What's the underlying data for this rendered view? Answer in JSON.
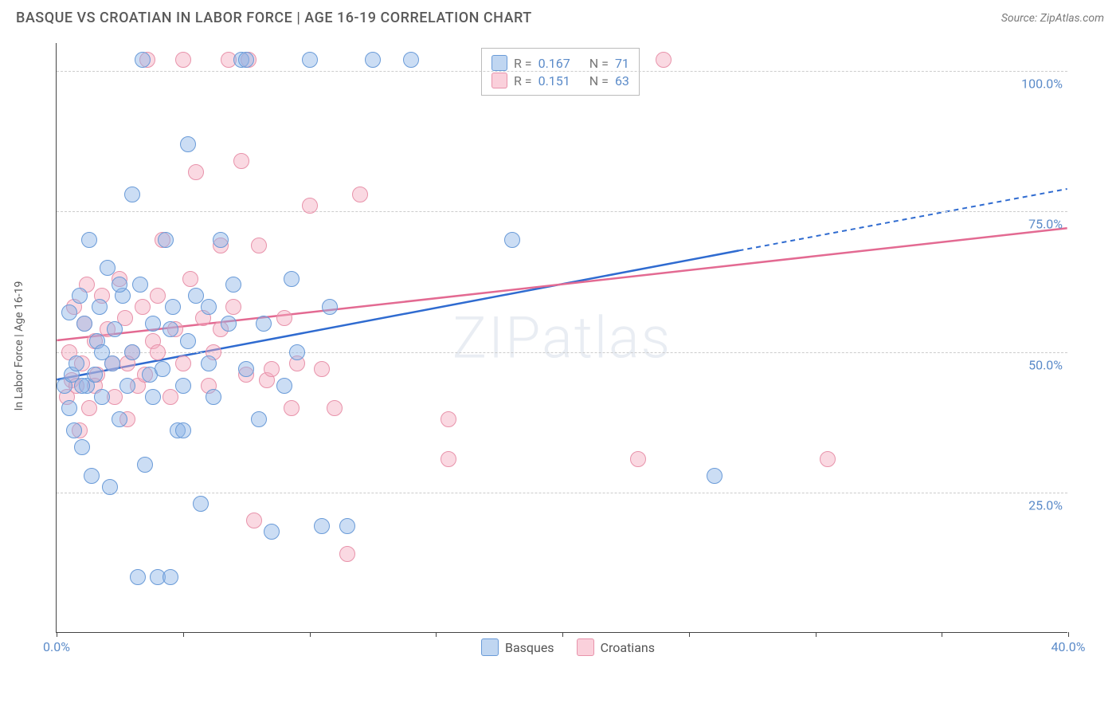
{
  "header": {
    "title": "BASQUE VS CROATIAN IN LABOR FORCE | AGE 16-19 CORRELATION CHART",
    "source": "Source: ZipAtlas.com"
  },
  "chart": {
    "type": "scatter",
    "ylabel": "In Labor Force | Age 16-19",
    "watermark": "ZIPatlas",
    "xlim": [
      0,
      40
    ],
    "ylim": [
      0,
      105
    ],
    "x_ticks": [
      0,
      5,
      10,
      15,
      20,
      25,
      30,
      35,
      40
    ],
    "x_tick_labels": {
      "0": "0.0%",
      "40": "40.0%"
    },
    "y_gridlines": [
      25,
      50,
      75,
      100
    ],
    "y_tick_labels": {
      "25": "25.0%",
      "50": "50.0%",
      "75": "75.0%",
      "100": "100.0%"
    },
    "background_color": "#ffffff",
    "grid_color": "#cccccc",
    "axis_label_color": "#5b8bc9",
    "axis_text_color": "#5a5a5a",
    "series": {
      "basque": {
        "label": "Basques",
        "fill": "rgba(140,180,230,0.45)",
        "stroke": "#6a9bd8",
        "trend_color": "#2f6bd0",
        "R": "0.167",
        "N": "71",
        "trend": {
          "x1": 0,
          "y1": 45,
          "x2_solid": 27,
          "y2_solid": 68,
          "x2_dash": 40,
          "y2_dash": 79
        },
        "points": [
          [
            0.3,
            44
          ],
          [
            0.5,
            40
          ],
          [
            0.5,
            57
          ],
          [
            0.6,
            46
          ],
          [
            0.7,
            36
          ],
          [
            0.8,
            48
          ],
          [
            0.9,
            60
          ],
          [
            1.0,
            33
          ],
          [
            1.1,
            55
          ],
          [
            1.2,
            44
          ],
          [
            1.3,
            70
          ],
          [
            1.4,
            28
          ],
          [
            1.5,
            46
          ],
          [
            1.6,
            52
          ],
          [
            1.7,
            58
          ],
          [
            1.8,
            42
          ],
          [
            2.0,
            65
          ],
          [
            2.1,
            26
          ],
          [
            2.2,
            48
          ],
          [
            2.3,
            54
          ],
          [
            2.5,
            38
          ],
          [
            2.6,
            60
          ],
          [
            2.8,
            44
          ],
          [
            3.0,
            50
          ],
          [
            3.0,
            78
          ],
          [
            3.2,
            10
          ],
          [
            3.3,
            62
          ],
          [
            3.4,
            102
          ],
          [
            3.5,
            30
          ],
          [
            3.7,
            46
          ],
          [
            3.8,
            55
          ],
          [
            4.0,
            10
          ],
          [
            4.2,
            47
          ],
          [
            4.3,
            70
          ],
          [
            4.5,
            10
          ],
          [
            4.6,
            58
          ],
          [
            4.8,
            36
          ],
          [
            5.0,
            44
          ],
          [
            5.2,
            52
          ],
          [
            5.2,
            87
          ],
          [
            5.5,
            60
          ],
          [
            5.7,
            23
          ],
          [
            6.0,
            48
          ],
          [
            6.2,
            42
          ],
          [
            6.5,
            70
          ],
          [
            6.8,
            55
          ],
          [
            7.0,
            62
          ],
          [
            7.3,
            102
          ],
          [
            7.5,
            102
          ],
          [
            7.5,
            47
          ],
          [
            8.0,
            38
          ],
          [
            8.2,
            55
          ],
          [
            8.5,
            18
          ],
          [
            9.0,
            44
          ],
          [
            9.3,
            63
          ],
          [
            9.5,
            50
          ],
          [
            10.0,
            102
          ],
          [
            10.5,
            19
          ],
          [
            10.8,
            58
          ],
          [
            11.5,
            19
          ],
          [
            12.5,
            102
          ],
          [
            14.0,
            102
          ],
          [
            18.0,
            70
          ],
          [
            26.0,
            28
          ],
          [
            1.0,
            44
          ],
          [
            1.8,
            50
          ],
          [
            2.5,
            62
          ],
          [
            3.8,
            42
          ],
          [
            4.5,
            54
          ],
          [
            5.0,
            36
          ],
          [
            6.0,
            58
          ]
        ]
      },
      "croatian": {
        "label": "Croatians",
        "fill": "rgba(245,170,190,0.45)",
        "stroke": "#e893ab",
        "trend_color": "#e36a92",
        "R": "0.151",
        "N": "63",
        "trend": {
          "x1": 0,
          "y1": 52,
          "x2_solid": 40,
          "y2_solid": 72,
          "x2_dash": 40,
          "y2_dash": 72
        },
        "points": [
          [
            0.4,
            42
          ],
          [
            0.5,
            50
          ],
          [
            0.6,
            45
          ],
          [
            0.7,
            58
          ],
          [
            0.8,
            44
          ],
          [
            0.9,
            36
          ],
          [
            1.0,
            48
          ],
          [
            1.1,
            55
          ],
          [
            1.2,
            62
          ],
          [
            1.3,
            40
          ],
          [
            1.5,
            52
          ],
          [
            1.6,
            46
          ],
          [
            1.8,
            60
          ],
          [
            2.0,
            54
          ],
          [
            2.2,
            48
          ],
          [
            2.3,
            42
          ],
          [
            2.5,
            63
          ],
          [
            2.7,
            56
          ],
          [
            2.8,
            38
          ],
          [
            3.0,
            50
          ],
          [
            3.2,
            44
          ],
          [
            3.4,
            58
          ],
          [
            3.5,
            46
          ],
          [
            3.8,
            52
          ],
          [
            4.0,
            60
          ],
          [
            4.2,
            70
          ],
          [
            4.5,
            42
          ],
          [
            4.7,
            54
          ],
          [
            5.0,
            48
          ],
          [
            5.3,
            63
          ],
          [
            5.5,
            82
          ],
          [
            5.8,
            56
          ],
          [
            6.0,
            44
          ],
          [
            6.2,
            50
          ],
          [
            6.5,
            69
          ],
          [
            6.8,
            102
          ],
          [
            7.0,
            58
          ],
          [
            7.3,
            84
          ],
          [
            7.5,
            46
          ],
          [
            7.6,
            102
          ],
          [
            7.8,
            20
          ],
          [
            8.0,
            69
          ],
          [
            8.3,
            45
          ],
          [
            8.5,
            47
          ],
          [
            9.0,
            56
          ],
          [
            9.3,
            40
          ],
          [
            9.5,
            48
          ],
          [
            10.0,
            76
          ],
          [
            10.5,
            47
          ],
          [
            11.0,
            40
          ],
          [
            11.5,
            14
          ],
          [
            12.0,
            78
          ],
          [
            15.5,
            31
          ],
          [
            15.5,
            38
          ],
          [
            23.0,
            31
          ],
          [
            24.0,
            102
          ],
          [
            30.5,
            31
          ],
          [
            3.6,
            102
          ],
          [
            5.0,
            102
          ],
          [
            1.5,
            44
          ],
          [
            2.8,
            48
          ],
          [
            4.0,
            50
          ],
          [
            6.5,
            54
          ]
        ]
      }
    },
    "legend_top": [
      {
        "swatch_fill": "rgba(140,180,230,0.55)",
        "swatch_stroke": "#6a9bd8",
        "R": "0.167",
        "N": "71"
      },
      {
        "swatch_fill": "rgba(245,170,190,0.55)",
        "swatch_stroke": "#e893ab",
        "R": "0.151",
        "N": "63"
      }
    ],
    "legend_bottom": [
      {
        "swatch_fill": "rgba(140,180,230,0.55)",
        "swatch_stroke": "#6a9bd8",
        "label": "Basques"
      },
      {
        "swatch_fill": "rgba(245,170,190,0.55)",
        "swatch_stroke": "#e893ab",
        "label": "Croatians"
      }
    ]
  }
}
